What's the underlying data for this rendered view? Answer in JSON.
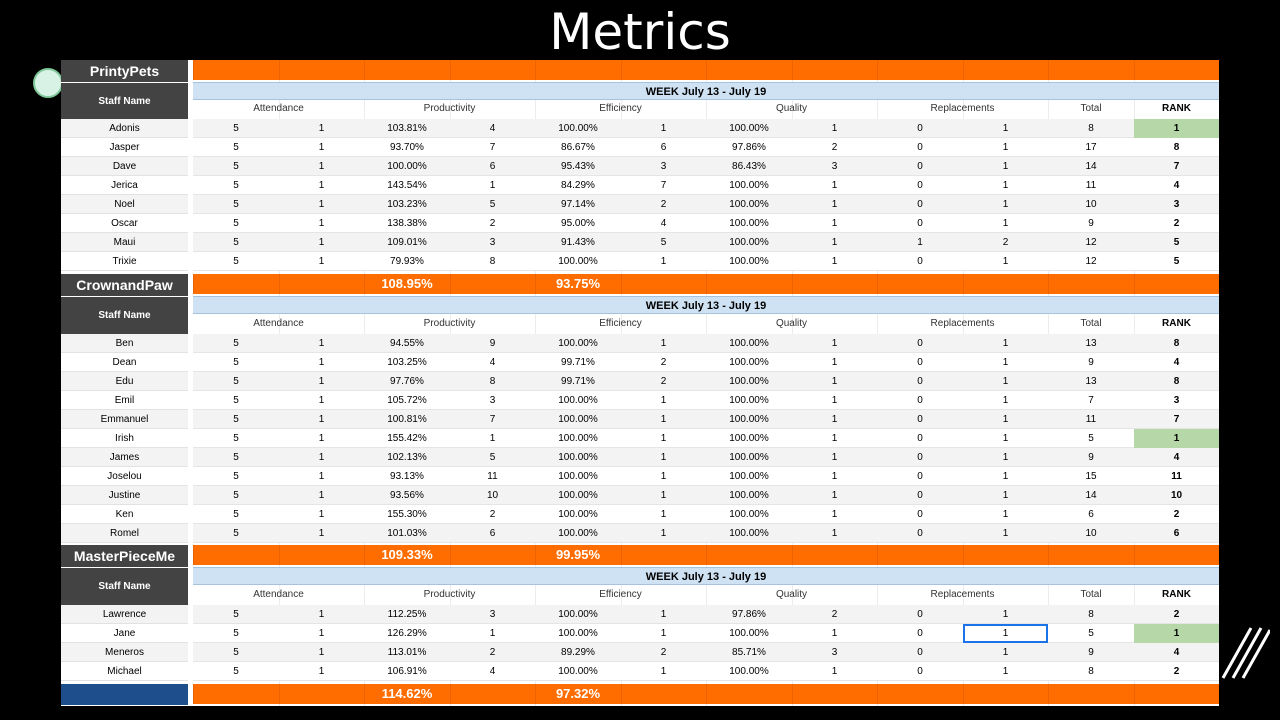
{
  "title": "Metrics",
  "colors": {
    "orange": "#ff6d01",
    "dark": "#434343",
    "week_bg": "#cfe2f3",
    "rank_top": "#b6d7a8",
    "blank_cell": "#1f4e8c"
  },
  "columns": [
    "Attendance",
    "Productivity",
    "Efficiency",
    "Quality",
    "Replacements",
    "Total",
    "RANK"
  ],
  "staff_header": "Staff Name",
  "sections": [
    {
      "company": "PrintyPets",
      "week": "WEEK July 13 - July 19",
      "rows": [
        [
          "Adonis",
          "5",
          "1",
          "103.81%",
          "4",
          "100.00%",
          "1",
          "100.00%",
          "1",
          "0",
          "1",
          "8",
          "1"
        ],
        [
          "Jasper",
          "5",
          "1",
          "93.70%",
          "7",
          "86.67%",
          "6",
          "97.86%",
          "2",
          "0",
          "1",
          "17",
          "8"
        ],
        [
          "Dave",
          "5",
          "1",
          "100.00%",
          "6",
          "95.43%",
          "3",
          "86.43%",
          "3",
          "0",
          "1",
          "14",
          "7"
        ],
        [
          "Jerica",
          "5",
          "1",
          "143.54%",
          "1",
          "84.29%",
          "7",
          "100.00%",
          "1",
          "0",
          "1",
          "11",
          "4"
        ],
        [
          "Noel",
          "5",
          "1",
          "103.23%",
          "5",
          "97.14%",
          "2",
          "100.00%",
          "1",
          "0",
          "1",
          "10",
          "3"
        ],
        [
          "Oscar",
          "5",
          "1",
          "138.38%",
          "2",
          "95.00%",
          "4",
          "100.00%",
          "1",
          "0",
          "1",
          "9",
          "2"
        ],
        [
          "Maui",
          "5",
          "1",
          "109.01%",
          "3",
          "91.43%",
          "5",
          "100.00%",
          "1",
          "1",
          "2",
          "12",
          "5"
        ],
        [
          "Trixie",
          "5",
          "1",
          "79.93%",
          "8",
          "100.00%",
          "1",
          "100.00%",
          "1",
          "0",
          "1",
          "12",
          "5"
        ]
      ],
      "summary": {
        "productivity": "108.95%",
        "efficiency": "93.75%"
      }
    },
    {
      "company": "CrownandPaw",
      "week": "WEEK July 13 - July 19",
      "rows": [
        [
          "Ben",
          "5",
          "1",
          "94.55%",
          "9",
          "100.00%",
          "1",
          "100.00%",
          "1",
          "0",
          "1",
          "13",
          "8"
        ],
        [
          "Dean",
          "5",
          "1",
          "103.25%",
          "4",
          "99.71%",
          "2",
          "100.00%",
          "1",
          "0",
          "1",
          "9",
          "4"
        ],
        [
          "Edu",
          "5",
          "1",
          "97.76%",
          "8",
          "99.71%",
          "2",
          "100.00%",
          "1",
          "0",
          "1",
          "13",
          "8"
        ],
        [
          "Emil",
          "5",
          "1",
          "105.72%",
          "3",
          "100.00%",
          "1",
          "100.00%",
          "1",
          "0",
          "1",
          "7",
          "3"
        ],
        [
          "Emmanuel",
          "5",
          "1",
          "100.81%",
          "7",
          "100.00%",
          "1",
          "100.00%",
          "1",
          "0",
          "1",
          "11",
          "7"
        ],
        [
          "Irish",
          "5",
          "1",
          "155.42%",
          "1",
          "100.00%",
          "1",
          "100.00%",
          "1",
          "0",
          "1",
          "5",
          "1"
        ],
        [
          "James",
          "5",
          "1",
          "102.13%",
          "5",
          "100.00%",
          "1",
          "100.00%",
          "1",
          "0",
          "1",
          "9",
          "4"
        ],
        [
          "Joselou",
          "5",
          "1",
          "93.13%",
          "11",
          "100.00%",
          "1",
          "100.00%",
          "1",
          "0",
          "1",
          "15",
          "11"
        ],
        [
          "Justine",
          "5",
          "1",
          "93.56%",
          "10",
          "100.00%",
          "1",
          "100.00%",
          "1",
          "0",
          "1",
          "14",
          "10"
        ],
        [
          "Ken",
          "5",
          "1",
          "155.30%",
          "2",
          "100.00%",
          "1",
          "100.00%",
          "1",
          "0",
          "1",
          "6",
          "2"
        ],
        [
          "Romel",
          "5",
          "1",
          "101.03%",
          "6",
          "100.00%",
          "1",
          "100.00%",
          "1",
          "0",
          "1",
          "10",
          "6"
        ]
      ],
      "summary": {
        "productivity": "109.33%",
        "efficiency": "99.95%"
      }
    },
    {
      "company": "MasterPieceMe",
      "week": "WEEK July 13 - July 19",
      "rows": [
        [
          "Lawrence",
          "5",
          "1",
          "112.25%",
          "3",
          "100.00%",
          "1",
          "97.86%",
          "2",
          "0",
          "1",
          "8",
          "2"
        ],
        [
          "Jane",
          "5",
          "1",
          "126.29%",
          "1",
          "100.00%",
          "1",
          "100.00%",
          "1",
          "0",
          "1",
          "5",
          "1"
        ],
        [
          "Meneros",
          "5",
          "1",
          "113.01%",
          "2",
          "89.29%",
          "2",
          "85.71%",
          "3",
          "0",
          "1",
          "9",
          "4"
        ],
        [
          "Michael",
          "5",
          "1",
          "106.91%",
          "4",
          "100.00%",
          "1",
          "100.00%",
          "1",
          "0",
          "1",
          "8",
          "2"
        ]
      ],
      "summary": {
        "productivity": "114.62%",
        "efficiency": "97.32%"
      }
    }
  ]
}
